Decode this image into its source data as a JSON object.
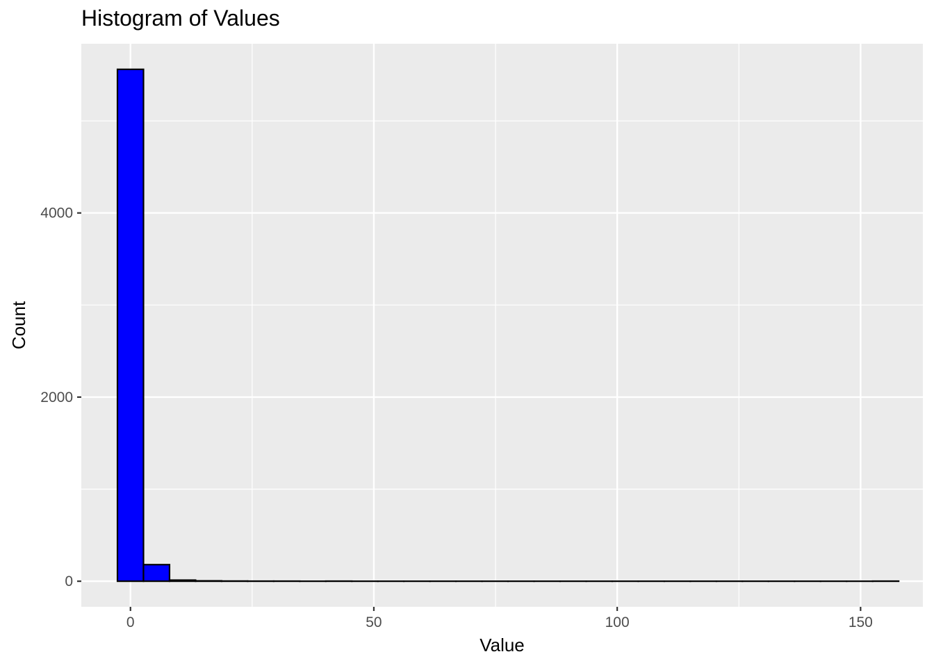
{
  "chart_data": {
    "type": "bar",
    "title": "Histogram of Values",
    "xlabel": "Value",
    "ylabel": "Count",
    "bin_width": 5.35,
    "bins": [
      {
        "start": -2.675,
        "end": 2.675,
        "count": 5560
      },
      {
        "start": 2.675,
        "end": 8.025,
        "count": 180
      },
      {
        "start": 8.025,
        "end": 13.375,
        "count": 12
      },
      {
        "start": 13.375,
        "end": 18.725,
        "count": 4
      },
      {
        "start": 18.725,
        "end": 24.075,
        "count": 2
      },
      {
        "start": 24.075,
        "end": 29.425,
        "count": 1
      },
      {
        "start": 29.425,
        "end": 34.775,
        "count": 1
      },
      {
        "start": 34.775,
        "end": 40.125,
        "count": 0
      },
      {
        "start": 40.125,
        "end": 45.475,
        "count": 1
      },
      {
        "start": 45.475,
        "end": 50.825,
        "count": 0
      },
      {
        "start": 50.825,
        "end": 56.175,
        "count": 0
      },
      {
        "start": 56.175,
        "end": 61.525,
        "count": 0
      },
      {
        "start": 61.525,
        "end": 66.875,
        "count": 0
      },
      {
        "start": 66.875,
        "end": 72.225,
        "count": 0
      },
      {
        "start": 72.225,
        "end": 77.575,
        "count": 0
      },
      {
        "start": 77.575,
        "end": 82.925,
        "count": 0
      },
      {
        "start": 82.925,
        "end": 88.275,
        "count": 0
      },
      {
        "start": 88.275,
        "end": 93.625,
        "count": 0
      },
      {
        "start": 93.625,
        "end": 98.975,
        "count": 0
      },
      {
        "start": 98.975,
        "end": 104.325,
        "count": 0
      },
      {
        "start": 104.325,
        "end": 109.675,
        "count": 0
      },
      {
        "start": 109.675,
        "end": 115.025,
        "count": 0
      },
      {
        "start": 115.025,
        "end": 120.375,
        "count": 0
      },
      {
        "start": 120.375,
        "end": 125.725,
        "count": 0
      },
      {
        "start": 125.725,
        "end": 131.075,
        "count": 0
      },
      {
        "start": 131.075,
        "end": 136.425,
        "count": 0
      },
      {
        "start": 136.425,
        "end": 141.775,
        "count": 0
      },
      {
        "start": 141.775,
        "end": 147.125,
        "count": 0
      },
      {
        "start": 147.125,
        "end": 152.475,
        "count": 0
      },
      {
        "start": 152.475,
        "end": 157.825,
        "count": 1
      }
    ],
    "xlim": [
      -10.1,
      162.8
    ],
    "ylim": [
      -278,
      5838
    ],
    "x_ticks": [
      0,
      50,
      100,
      150
    ],
    "y_ticks": [
      0,
      2000,
      4000
    ],
    "x_minor": [
      25,
      75,
      125
    ],
    "y_minor": [
      1000,
      3000,
      5000
    ],
    "grid": true,
    "legend": "none",
    "colors": {
      "bar_fill": "#0000ff",
      "bar_stroke": "#000000",
      "panel_bg": "#ebebeb",
      "grid": "#ffffff",
      "tick_label": "#4d4d4d"
    }
  }
}
